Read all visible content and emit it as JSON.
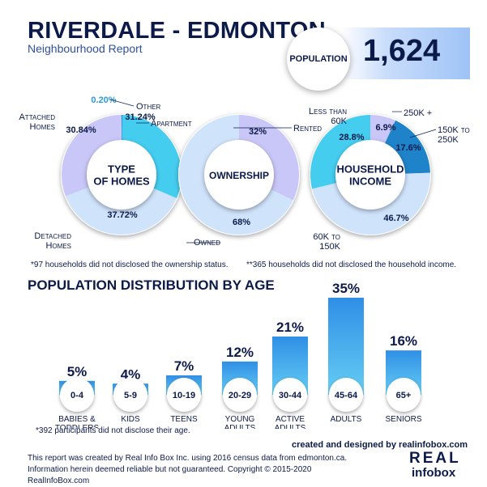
{
  "header": {
    "title": "RIVERDALE - EDMONTON",
    "subtitle": "Neighbourhood Report"
  },
  "population": {
    "label": "POPULATION",
    "value": "1,624"
  },
  "donuts": {
    "type_of_homes": {
      "center": [
        "TYPE",
        "OF HOMES"
      ]
    },
    "ownership": {
      "center": [
        "OWNERSHIP"
      ]
    },
    "household_income": {
      "center": [
        "HOUSEHOLD",
        "INCOME"
      ]
    }
  },
  "notes": {
    "ownership": "*97 households did not disclosed the ownership status.",
    "income": "**365 households did not disclosed the household income.",
    "age": "*392 participants did not disclose their age."
  },
  "age_section": {
    "title": "POPULATION DISTRIBUTION BY AGE"
  },
  "footer": {
    "text": "This report was created by Real Info Box Inc. using 2016 census data from edmonton.ca. Information herein deemed reliable but not guaranteed. Copyright © 2015-2020 RealInfoBox.com",
    "credit": "created and designed by realinfobox.com",
    "logo_line1": "REAL",
    "logo_line2": "infobox"
  },
  "colors": {
    "navy": "#0c1a4a",
    "cyan": "#45cdf0",
    "lavender": "#c9c7f7",
    "lightblue": "#cfe3fb",
    "blue": "#3d9ae6",
    "deepblue": "#1e83c9"
  },
  "chart_data": [
    {
      "type": "pie",
      "id": "type_of_homes",
      "title": "TYPE OF HOMES",
      "categories": [
        "Other",
        "Apartment",
        "Detached Homes",
        "Attached Homes"
      ],
      "values": [
        0.2,
        31.24,
        37.72,
        30.84
      ],
      "labels": [
        "0.20%",
        "31.24%",
        "37.72%",
        "30.84%"
      ],
      "colors": [
        "#1e83c9",
        "#45cdf0",
        "#cfe3fb",
        "#c9c7f7"
      ]
    },
    {
      "type": "pie",
      "id": "ownership",
      "title": "OWNERSHIP",
      "categories": [
        "Rented",
        "Owned"
      ],
      "values": [
        32,
        68
      ],
      "labels": [
        "32%",
        "68%"
      ],
      "colors": [
        "#c9c7f7",
        "#cfe3fb"
      ]
    },
    {
      "type": "pie",
      "id": "household_income",
      "title": "HOUSEHOLD INCOME",
      "categories": [
        "250K +",
        "150K to 250K",
        "60K to 150K",
        "Less than 60K"
      ],
      "values": [
        6.9,
        17.6,
        46.7,
        28.8
      ],
      "labels": [
        "6.9%",
        "17.6%",
        "46.7%",
        "28.8%"
      ],
      "colors": [
        "#c9c7f7",
        "#1e83c9",
        "#cfe3fb",
        "#45cdf0"
      ]
    },
    {
      "type": "bar",
      "id": "age",
      "title": "POPULATION DISTRIBUTION BY AGE",
      "categories": [
        "0-4",
        "5-9",
        "10-19",
        "20-29",
        "30-44",
        "45-64",
        "65+"
      ],
      "descriptions": [
        [
          "BABIES &",
          "TODDLERS"
        ],
        [
          "KIDS"
        ],
        [
          "TEENS"
        ],
        [
          "YOUNG",
          "ADULTS"
        ],
        [
          "ACTIVE",
          "ADULTS"
        ],
        [
          "ADULTS"
        ],
        [
          "SENIORS"
        ]
      ],
      "values": [
        5,
        4,
        7,
        12,
        21,
        35,
        16
      ],
      "labels": [
        "5%",
        "4%",
        "7%",
        "12%",
        "21%",
        "35%",
        "16%"
      ],
      "ylim": [
        0,
        35
      ]
    }
  ]
}
